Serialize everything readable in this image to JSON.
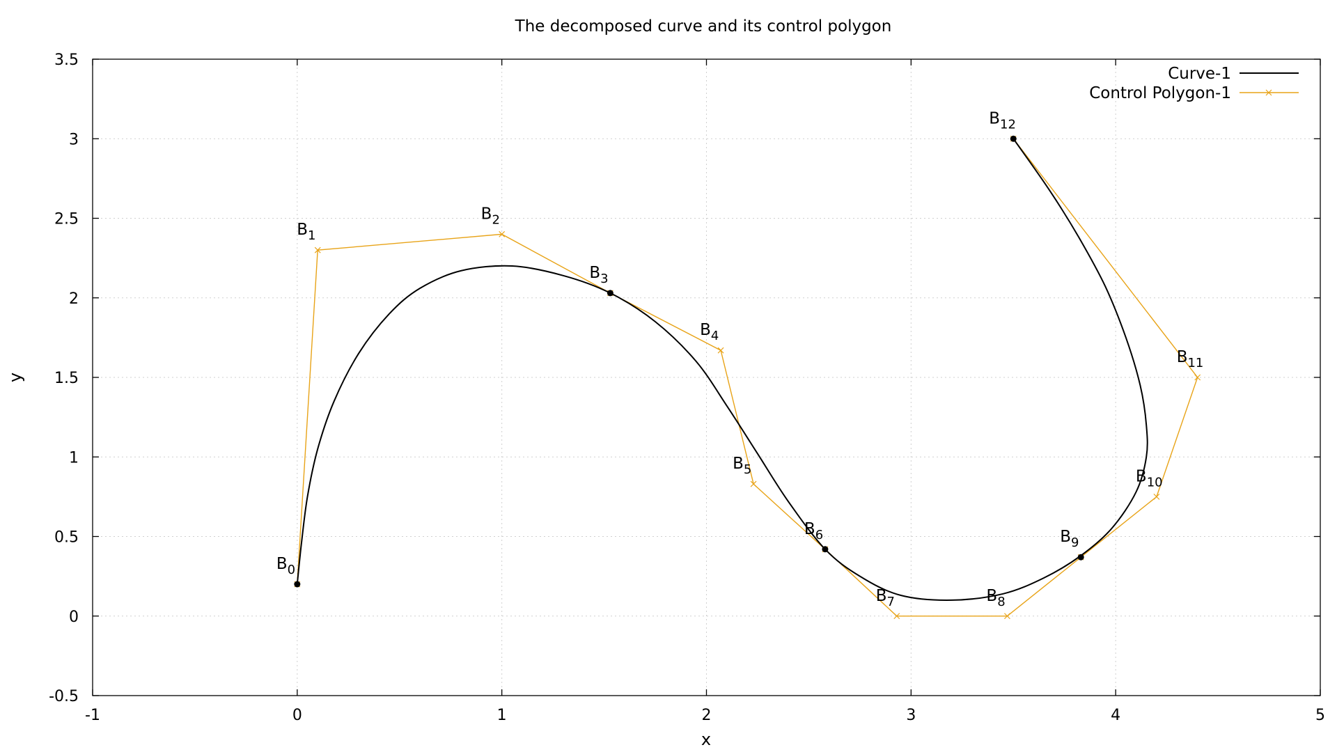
{
  "chart_data": {
    "type": "line",
    "title": "The decomposed curve and its control polygon",
    "xlabel": "x",
    "ylabel": "y",
    "xlim": [
      -1,
      5
    ],
    "ylim": [
      -0.5,
      3.5
    ],
    "xticks": [
      -1,
      0,
      1,
      2,
      3,
      4,
      5
    ],
    "xtick_labels": [
      "-1",
      "0",
      "1",
      "2",
      "3",
      "4",
      "5"
    ],
    "yticks": [
      -0.5,
      0,
      0.5,
      1,
      1.5,
      2,
      2.5,
      3,
      3.5
    ],
    "ytick_labels": [
      "-0.5",
      "0",
      "0.5",
      "1",
      "1.5",
      "2",
      "2.5",
      "3",
      "3.5"
    ],
    "grid": true,
    "legend_position": "top-right",
    "colors": {
      "curve": "#000000",
      "polygon": "#e8a317"
    },
    "series": [
      {
        "name": "Curve-1",
        "type": "line",
        "points": [
          [
            0.0,
            0.2
          ],
          [
            0.02,
            0.45
          ],
          [
            0.05,
            0.75
          ],
          [
            0.1,
            1.05
          ],
          [
            0.18,
            1.35
          ],
          [
            0.3,
            1.65
          ],
          [
            0.45,
            1.9
          ],
          [
            0.6,
            2.06
          ],
          [
            0.8,
            2.17
          ],
          [
            1.05,
            2.2
          ],
          [
            1.3,
            2.14
          ],
          [
            1.53,
            2.03
          ],
          [
            1.75,
            1.85
          ],
          [
            1.95,
            1.6
          ],
          [
            2.1,
            1.32
          ],
          [
            2.25,
            1.02
          ],
          [
            2.4,
            0.72
          ],
          [
            2.58,
            0.42
          ],
          [
            2.75,
            0.25
          ],
          [
            2.95,
            0.13
          ],
          [
            3.2,
            0.1
          ],
          [
            3.45,
            0.14
          ],
          [
            3.65,
            0.24
          ],
          [
            3.83,
            0.38
          ],
          [
            3.98,
            0.55
          ],
          [
            4.1,
            0.78
          ],
          [
            4.15,
            1.0
          ],
          [
            4.15,
            1.2
          ],
          [
            4.12,
            1.45
          ],
          [
            4.05,
            1.75
          ],
          [
            3.95,
            2.07
          ],
          [
            3.82,
            2.38
          ],
          [
            3.68,
            2.67
          ],
          [
            3.5,
            3.0
          ]
        ]
      },
      {
        "name": "Control Polygon-1",
        "type": "line",
        "points": [
          [
            0.0,
            0.2
          ],
          [
            0.1,
            2.3
          ],
          [
            1.0,
            2.4
          ],
          [
            1.53,
            2.03
          ],
          [
            2.07,
            1.67
          ],
          [
            2.23,
            0.83
          ],
          [
            2.58,
            0.42
          ],
          [
            2.93,
            0.0
          ],
          [
            3.47,
            0.0
          ],
          [
            3.83,
            0.37
          ],
          [
            4.2,
            0.75
          ],
          [
            4.4,
            1.5
          ],
          [
            3.5,
            3.0
          ]
        ]
      }
    ],
    "junction_points": [
      [
        0.0,
        0.2
      ],
      [
        1.53,
        2.03
      ],
      [
        2.58,
        0.42
      ],
      [
        3.83,
        0.37
      ],
      [
        3.5,
        3.0
      ]
    ],
    "point_labels": [
      {
        "base": "B",
        "sub": "0",
        "x": 0.0,
        "y": 0.2
      },
      {
        "base": "B",
        "sub": "1",
        "x": 0.1,
        "y": 2.3
      },
      {
        "base": "B",
        "sub": "2",
        "x": 1.0,
        "y": 2.4
      },
      {
        "base": "B",
        "sub": "3",
        "x": 1.53,
        "y": 2.03
      },
      {
        "base": "B",
        "sub": "4",
        "x": 2.07,
        "y": 1.67
      },
      {
        "base": "B",
        "sub": "5",
        "x": 2.23,
        "y": 0.83
      },
      {
        "base": "B",
        "sub": "6",
        "x": 2.58,
        "y": 0.42
      },
      {
        "base": "B",
        "sub": "7",
        "x": 2.93,
        "y": 0.0
      },
      {
        "base": "B",
        "sub": "8",
        "x": 3.47,
        "y": 0.0
      },
      {
        "base": "B",
        "sub": "9",
        "x": 3.83,
        "y": 0.37
      },
      {
        "base": "B",
        "sub": "10",
        "x": 4.2,
        "y": 0.75
      },
      {
        "base": "B",
        "sub": "11",
        "x": 4.4,
        "y": 1.5
      },
      {
        "base": "B",
        "sub": "12",
        "x": 3.5,
        "y": 3.0
      }
    ]
  }
}
